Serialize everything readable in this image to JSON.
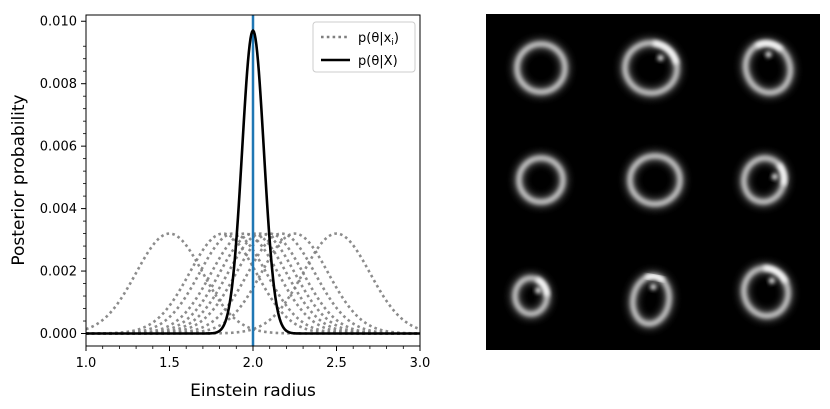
{
  "chart_data": [
    {
      "type": "line",
      "xlabel": "Einstein radius",
      "ylabel": "Posterior probability",
      "xlim": [
        1.0,
        3.0
      ],
      "ylim": [
        -0.0004,
        0.0102
      ],
      "xticks": [
        "1.0",
        "1.5",
        "2.0",
        "2.5",
        "3.0"
      ],
      "yticks": [
        "0.000",
        "0.002",
        "0.004",
        "0.006",
        "0.008",
        "0.010"
      ],
      "legend_position": "top-right",
      "legend": [
        {
          "label": "p(θ|x",
          "sub": "i",
          "close": ")",
          "style": "dotted",
          "color": "#7f7f7f"
        },
        {
          "label": "p(θ|X)",
          "style": "solid",
          "color": "#000000"
        }
      ],
      "vertical_line": {
        "x": 2.0,
        "color": "#1f77b4"
      },
      "individual_posteriors": {
        "peak": 0.0032,
        "sigma": 0.2,
        "centers": [
          1.5,
          1.82,
          1.88,
          1.95,
          2.0,
          2.05,
          2.1,
          2.17,
          2.25,
          2.5
        ]
      },
      "combined_posterior": {
        "center": 2.0,
        "peak": 0.0097,
        "sigma": 0.065
      }
    },
    {
      "type": "image-grid",
      "rows": 3,
      "cols": 3,
      "background": "#000000",
      "ring_color": "#ffffff"
    }
  ]
}
